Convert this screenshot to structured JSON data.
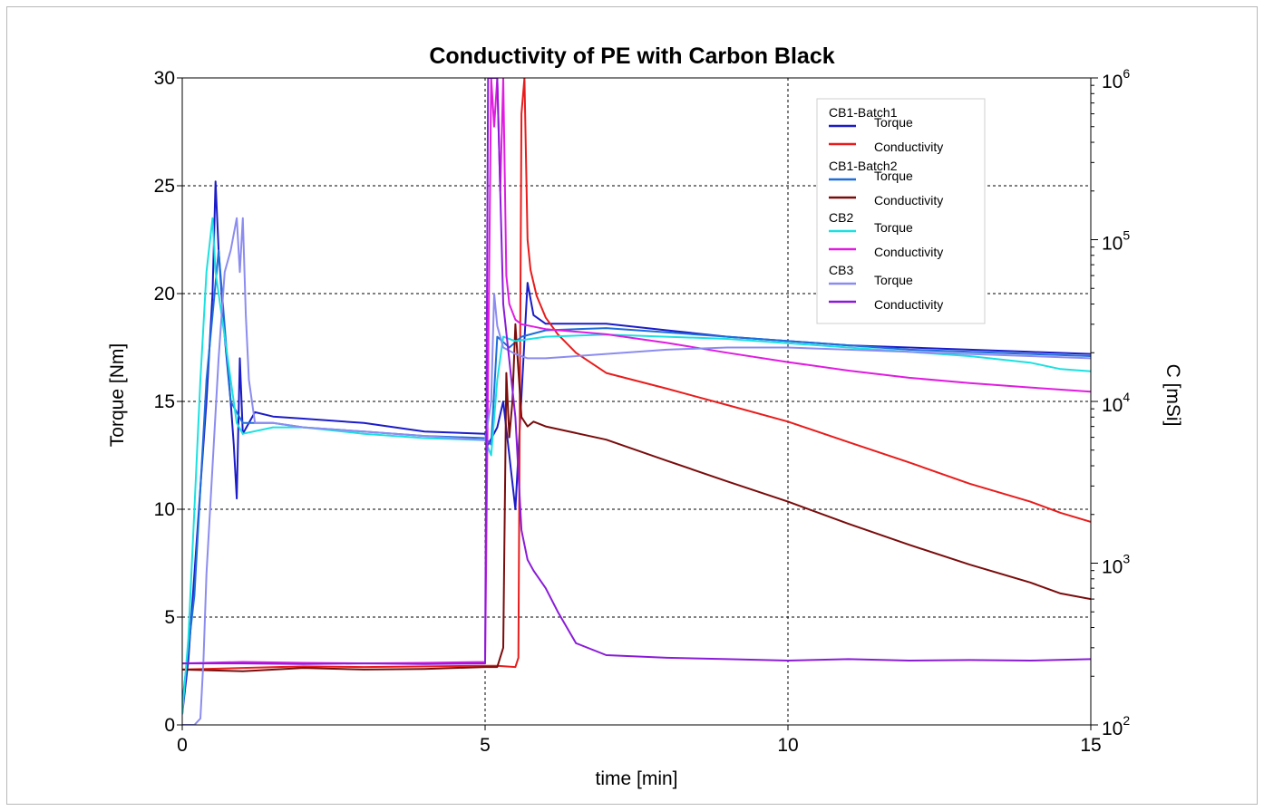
{
  "chart_data": {
    "type": "line",
    "title": "Conductivity of PE with Carbon Black",
    "xlabel": "time [min]",
    "ylabel_left": "Torque [Nm]",
    "ylabel_right": "C [mSi]",
    "xlim": [
      0,
      15
    ],
    "ylim_left": [
      0,
      30
    ],
    "ylim_right": [
      100,
      1000000
    ],
    "right_axis_scale": "log",
    "x_ticks": [
      0,
      5,
      10,
      15
    ],
    "y_ticks_left": [
      0,
      5,
      10,
      15,
      20,
      25,
      30
    ],
    "y_ticks_right": [
      {
        "base": "10",
        "exp": "2",
        "value": 100
      },
      {
        "base": "10",
        "exp": "3",
        "value": 1000
      },
      {
        "base": "10",
        "exp": "4",
        "value": 10000
      },
      {
        "base": "10",
        "exp": "5",
        "value": 100000
      },
      {
        "base": "10",
        "exp": "6",
        "value": 1000000
      }
    ],
    "grid": true,
    "legend_position": "top-right",
    "legend_groups": [
      {
        "label": "CB1-Batch1",
        "entries": [
          "Torque",
          "Conductivity"
        ]
      },
      {
        "label": "CB1-Batch2",
        "entries": [
          "Torque",
          "Conductivity"
        ]
      },
      {
        "label": "CB2",
        "entries": [
          "Torque",
          "Conductivity"
        ]
      },
      {
        "label": "CB3",
        "entries": [
          "Torque",
          "Conductivity"
        ]
      }
    ],
    "series": [
      {
        "group": "CB1-Batch1",
        "name": "Torque",
        "axis": "left",
        "color": "#1c1cc8",
        "x": [
          0,
          0.1,
          0.2,
          0.3,
          0.4,
          0.5,
          0.55,
          0.6,
          0.65,
          0.7,
          0.8,
          0.85,
          0.9,
          0.95,
          1.0,
          1.1,
          1.2,
          1.5,
          2,
          3,
          4,
          5,
          5.05,
          5.2,
          5.3,
          5.5,
          5.7,
          5.8,
          6,
          7,
          8,
          9,
          10,
          11,
          12,
          13,
          14,
          15
        ],
        "y": [
          0.5,
          3,
          7,
          11,
          15,
          20,
          25.2,
          22,
          20,
          18,
          15,
          13,
          10.5,
          17,
          13.5,
          14,
          14.5,
          14.3,
          14.2,
          14,
          13.6,
          13.5,
          13,
          13.8,
          15,
          10,
          20.5,
          19,
          18.6,
          18.6,
          18.3,
          18,
          17.8,
          17.6,
          17.5,
          17.4,
          17.3,
          17.2
        ]
      },
      {
        "group": "CB1-Batch1",
        "name": "Conductivity",
        "axis": "right",
        "color": "#e81c1c",
        "x": [
          0,
          1,
          2,
          3,
          4,
          5,
          5.2,
          5.5,
          5.55,
          5.6,
          5.65,
          5.7,
          5.75,
          5.85,
          6,
          6.2,
          6.5,
          7,
          8,
          9,
          10,
          11,
          12,
          13,
          14,
          14.5,
          15
        ],
        "y": [
          220,
          225,
          230,
          228,
          230,
          232,
          232,
          228,
          260,
          600000,
          1000000,
          100000,
          65000,
          45000,
          33000,
          26000,
          20000,
          15000,
          12000,
          9500,
          7500,
          5600,
          4200,
          3100,
          2400,
          2050,
          1800
        ]
      },
      {
        "group": "CB1-Batch2",
        "name": "Torque",
        "axis": "left",
        "color": "#1f6ed8",
        "x": [
          0,
          0.2,
          0.4,
          0.6,
          0.8,
          1,
          1.5,
          2,
          3,
          4,
          5,
          5.1,
          5.2,
          5.4,
          5.6,
          6,
          7,
          8,
          9,
          10,
          11,
          12,
          13,
          14,
          15
        ],
        "y": [
          1,
          6,
          16,
          22,
          15,
          14,
          14,
          13.8,
          13.6,
          13.4,
          13.3,
          13,
          18,
          17.5,
          18,
          18.3,
          18.4,
          18.2,
          18,
          17.8,
          17.6,
          17.4,
          17.3,
          17.2,
          17.1
        ]
      },
      {
        "group": "CB1-Batch2",
        "name": "Conductivity",
        "axis": "right",
        "color": "#7a0c0c",
        "x": [
          0,
          1,
          2,
          3,
          4,
          5,
          5.2,
          5.3,
          5.35,
          5.4,
          5.45,
          5.5,
          5.6,
          5.7,
          5.8,
          6,
          7,
          8,
          9,
          10,
          11,
          12,
          13,
          14,
          14.5,
          15
        ],
        "y": [
          220,
          215,
          225,
          220,
          222,
          228,
          228,
          300,
          15000,
          6000,
          10000,
          30000,
          8000,
          7000,
          7500,
          7000,
          5800,
          4300,
          3200,
          2400,
          1750,
          1300,
          980,
          760,
          650,
          600
        ]
      },
      {
        "group": "CB2",
        "name": "Torque",
        "axis": "left",
        "color": "#1ce0e0",
        "x": [
          0,
          0.1,
          0.2,
          0.3,
          0.4,
          0.5,
          0.55,
          0.6,
          0.7,
          0.8,
          0.9,
          1,
          1.5,
          2,
          3,
          4,
          5,
          5.1,
          5.2,
          5.3,
          5.5,
          6,
          7,
          8,
          9,
          10,
          11,
          12,
          13,
          14,
          14.5,
          15
        ],
        "y": [
          0.5,
          4,
          10,
          16,
          21,
          23.5,
          21,
          20,
          18,
          16,
          14,
          13.5,
          13.8,
          13.8,
          13.5,
          13.3,
          13.2,
          12.5,
          16,
          18,
          17.8,
          18,
          18.1,
          18,
          17.9,
          17.7,
          17.5,
          17.3,
          17.1,
          16.8,
          16.5,
          16.4
        ]
      },
      {
        "group": "CB2",
        "name": "Conductivity",
        "axis": "right",
        "color": "#e01ce0",
        "x": [
          0,
          1,
          2,
          3,
          4,
          5,
          5.1,
          5.15,
          5.2,
          5.25,
          5.3,
          5.35,
          5.4,
          5.5,
          5.6,
          6,
          7,
          8,
          9,
          10,
          11,
          12,
          13,
          14,
          15
        ],
        "y": [
          240,
          245,
          242,
          240,
          242,
          245,
          1000000,
          500000,
          1000000,
          200000,
          1000000,
          60000,
          40000,
          32000,
          30000,
          28000,
          26000,
          23000,
          20000,
          17500,
          15500,
          14000,
          13000,
          12200,
          11500
        ]
      },
      {
        "group": "CB3",
        "name": "Torque",
        "axis": "left",
        "color": "#8c8cf0",
        "x": [
          0,
          0.2,
          0.3,
          0.35,
          0.4,
          0.5,
          0.6,
          0.7,
          0.8,
          0.9,
          0.95,
          1.0,
          1.05,
          1.1,
          1.2,
          1.5,
          2,
          3,
          4,
          5,
          5.1,
          5.15,
          5.2,
          5.3,
          5.5,
          5.7,
          6,
          7,
          8,
          9,
          10,
          11,
          12,
          13,
          14,
          15
        ],
        "y": [
          0,
          0,
          0.3,
          3,
          7,
          12,
          17,
          21,
          22,
          23.5,
          21,
          23.5,
          19,
          16,
          14,
          14,
          13.8,
          13.6,
          13.4,
          13.2,
          15,
          20,
          18.5,
          17.5,
          17.2,
          17,
          17,
          17.2,
          17.4,
          17.5,
          17.5,
          17.4,
          17.3,
          17.2,
          17.1,
          17
        ]
      },
      {
        "group": "CB3",
        "name": "Conductivity",
        "axis": "right",
        "color": "#8a1cd8",
        "x": [
          0,
          1,
          2,
          3,
          4,
          5,
          5.05,
          5.1,
          5.15,
          5.2,
          5.3,
          5.4,
          5.5,
          5.6,
          5.7,
          5.8,
          6,
          6.2,
          6.5,
          7,
          8,
          9,
          10,
          11,
          12,
          13,
          14,
          15
        ],
        "y": [
          240,
          240,
          238,
          240,
          238,
          240,
          1000000,
          1000000,
          1000000,
          1000000,
          40000,
          18000,
          8000,
          1600,
          1050,
          900,
          700,
          500,
          320,
          270,
          260,
          255,
          250,
          255,
          250,
          252,
          250,
          255
        ]
      }
    ]
  }
}
